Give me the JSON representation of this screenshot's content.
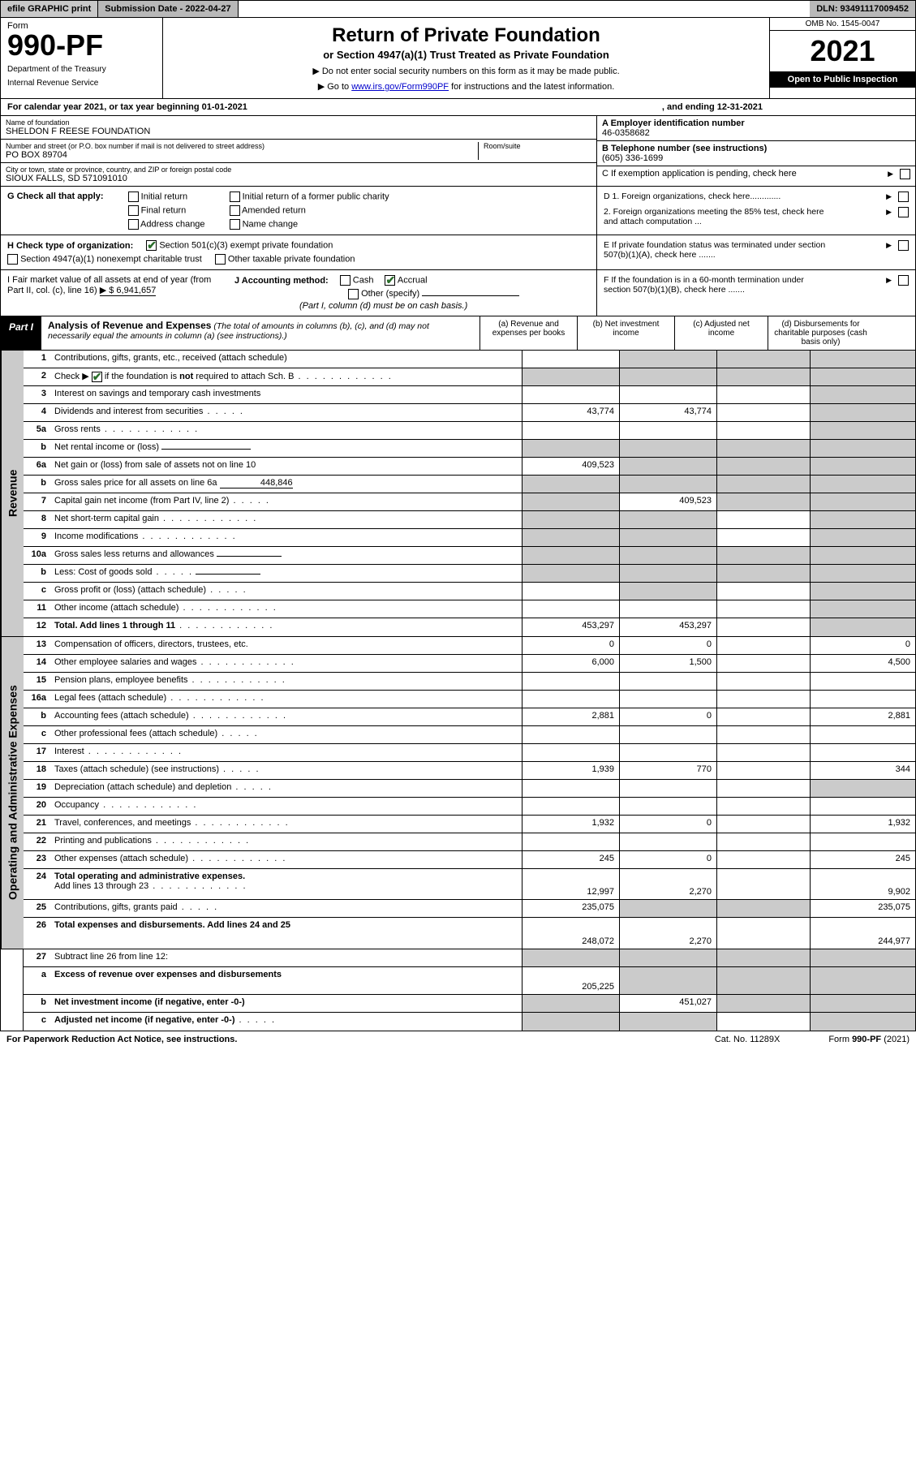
{
  "topbar": {
    "efile_print": "efile GRAPHIC print",
    "submission_label": "Submission Date - 2022-04-27",
    "dln": "DLN: 93491117009452"
  },
  "header": {
    "form_word": "Form",
    "form_number": "990-PF",
    "dept1": "Department of the Treasury",
    "dept2": "Internal Revenue Service",
    "title": "Return of Private Foundation",
    "subtitle": "or Section 4947(a)(1) Trust Treated as Private Foundation",
    "note1": "▶ Do not enter social security numbers on this form as it may be made public.",
    "note2_pre": "▶ Go to ",
    "note2_link": "www.irs.gov/Form990PF",
    "note2_post": " for instructions and the latest information.",
    "omb": "OMB No. 1545-0047",
    "year": "2021",
    "open": "Open to Public Inspection"
  },
  "calendar": {
    "text": "For calendar year 2021, or tax year beginning 01-01-2021",
    "ending": ", and ending 12-31-2021"
  },
  "info_left": {
    "name_label": "Name of foundation",
    "name": "SHELDON F REESE FOUNDATION",
    "street_label": "Number and street (or P.O. box number if mail is not delivered to street address)",
    "street": "PO BOX 89704",
    "room_label": "Room/suite",
    "city_label": "City or town, state or province, country, and ZIP or foreign postal code",
    "city": "SIOUX FALLS, SD  571091010"
  },
  "info_right": {
    "a_label": "A Employer identification number",
    "a_val": "46-0358682",
    "b_label": "B Telephone number (see instructions)",
    "b_val": "(605) 336-1699",
    "c_label": "C If exemption application is pending, check here"
  },
  "g_section": {
    "g_label": "G Check all that apply:",
    "initial": "Initial return",
    "final": "Final return",
    "address": "Address change",
    "initial_former": "Initial return of a former public charity",
    "amended": "Amended return",
    "name_change": "Name change"
  },
  "d_section": {
    "d1": "D 1. Foreign organizations, check here.............",
    "d2": "2. Foreign organizations meeting the 85% test, check here and attach computation ..."
  },
  "h_section": {
    "h_label": "H Check type of organization:",
    "h1": "Section 501(c)(3) exempt private foundation",
    "h2": "Section 4947(a)(1) nonexempt charitable trust",
    "h3": "Other taxable private foundation"
  },
  "e_section": {
    "e_label": "E  If private foundation status was terminated under section 507(b)(1)(A), check here ......."
  },
  "i_section": {
    "i_label": "I Fair market value of all assets at end of year (from Part II, col. (c), line 16)",
    "i_val": "▶ $  6,941,657"
  },
  "j_section": {
    "j_label": "J Accounting method:",
    "cash": "Cash",
    "accrual": "Accrual",
    "other": "Other (specify)",
    "note": "(Part I, column (d) must be on cash basis.)"
  },
  "f_section": {
    "f_label": "F  If the foundation is in a 60-month termination under section 507(b)(1)(B), check here ......."
  },
  "part1": {
    "label": "Part I",
    "title": "Analysis of Revenue and Expenses",
    "paren": "(The total of amounts in columns (b), (c), and (d) may not necessarily equal the amounts in column (a) (see instructions).)",
    "col_a": "(a)   Revenue and expenses per books",
    "col_b": "(b)   Net investment income",
    "col_c": "(c)   Adjusted net income",
    "col_d": "(d)   Disbursements for charitable purposes (cash basis only)"
  },
  "sections": {
    "revenue": "Revenue",
    "expenses": "Operating and Administrative Expenses"
  },
  "lines": {
    "l1": {
      "n": "1",
      "d": "Contributions, gifts, grants, etc., received (attach schedule)"
    },
    "l2": {
      "n": "2",
      "d_pre": "Check ▶",
      "d_post": " if the foundation is not required to attach Sch. B"
    },
    "l3": {
      "n": "3",
      "d": "Interest on savings and temporary cash investments"
    },
    "l4": {
      "n": "4",
      "d": "Dividends and interest from securities",
      "a": "43,774",
      "b": "43,774"
    },
    "l5a": {
      "n": "5a",
      "d": "Gross rents"
    },
    "l5b": {
      "n": "b",
      "d": "Net rental income or (loss)"
    },
    "l6a": {
      "n": "6a",
      "d": "Net gain or (loss) from sale of assets not on line 10",
      "a": "409,523"
    },
    "l6b": {
      "n": "b",
      "d": "Gross sales price for all assets on line 6a",
      "v": "448,846"
    },
    "l7": {
      "n": "7",
      "d": "Capital gain net income (from Part IV, line 2)",
      "b": "409,523"
    },
    "l8": {
      "n": "8",
      "d": "Net short-term capital gain"
    },
    "l9": {
      "n": "9",
      "d": "Income modifications"
    },
    "l10a": {
      "n": "10a",
      "d": "Gross sales less returns and allowances"
    },
    "l10b": {
      "n": "b",
      "d": "Less: Cost of goods sold"
    },
    "l10c": {
      "n": "c",
      "d": "Gross profit or (loss) (attach schedule)"
    },
    "l11": {
      "n": "11",
      "d": "Other income (attach schedule)"
    },
    "l12": {
      "n": "12",
      "d": "Total. Add lines 1 through 11",
      "a": "453,297",
      "b": "453,297"
    },
    "l13": {
      "n": "13",
      "d": "Compensation of officers, directors, trustees, etc.",
      "a": "0",
      "b": "0",
      "dd": "0"
    },
    "l14": {
      "n": "14",
      "d": "Other employee salaries and wages",
      "a": "6,000",
      "b": "1,500",
      "dd": "4,500"
    },
    "l15": {
      "n": "15",
      "d": "Pension plans, employee benefits"
    },
    "l16a": {
      "n": "16a",
      "d": "Legal fees (attach schedule)"
    },
    "l16b": {
      "n": "b",
      "d": "Accounting fees (attach schedule)",
      "a": "2,881",
      "b": "0",
      "dd": "2,881"
    },
    "l16c": {
      "n": "c",
      "d": "Other professional fees (attach schedule)"
    },
    "l17": {
      "n": "17",
      "d": "Interest"
    },
    "l18": {
      "n": "18",
      "d": "Taxes (attach schedule) (see instructions)",
      "a": "1,939",
      "b": "770",
      "dd": "344"
    },
    "l19": {
      "n": "19",
      "d": "Depreciation (attach schedule) and depletion"
    },
    "l20": {
      "n": "20",
      "d": "Occupancy"
    },
    "l21": {
      "n": "21",
      "d": "Travel, conferences, and meetings",
      "a": "1,932",
      "b": "0",
      "dd": "1,932"
    },
    "l22": {
      "n": "22",
      "d": "Printing and publications"
    },
    "l23": {
      "n": "23",
      "d": "Other expenses (attach schedule)",
      "a": "245",
      "b": "0",
      "dd": "245"
    },
    "l24": {
      "n": "24",
      "d": "Total operating and administrative expenses.",
      "d2": "Add lines 13 through 23",
      "a": "12,997",
      "b": "2,270",
      "dd": "9,902"
    },
    "l25": {
      "n": "25",
      "d": "Contributions, gifts, grants paid",
      "a": "235,075",
      "dd": "235,075"
    },
    "l26": {
      "n": "26",
      "d": "Total expenses and disbursements. Add lines 24 and 25",
      "a": "248,072",
      "b": "2,270",
      "dd": "244,977"
    },
    "l27": {
      "n": "27",
      "d": "Subtract line 26 from line 12:"
    },
    "l27a": {
      "n": "a",
      "d": "Excess of revenue over expenses and disbursements",
      "a": "205,225"
    },
    "l27b": {
      "n": "b",
      "d": "Net investment income (if negative, enter -0-)",
      "b": "451,027"
    },
    "l27c": {
      "n": "c",
      "d": "Adjusted net income (if negative, enter -0-)"
    }
  },
  "footer": {
    "left": "For Paperwork Reduction Act Notice, see instructions.",
    "cat": "Cat. No. 11289X",
    "right": "Form 990-PF (2021)"
  }
}
